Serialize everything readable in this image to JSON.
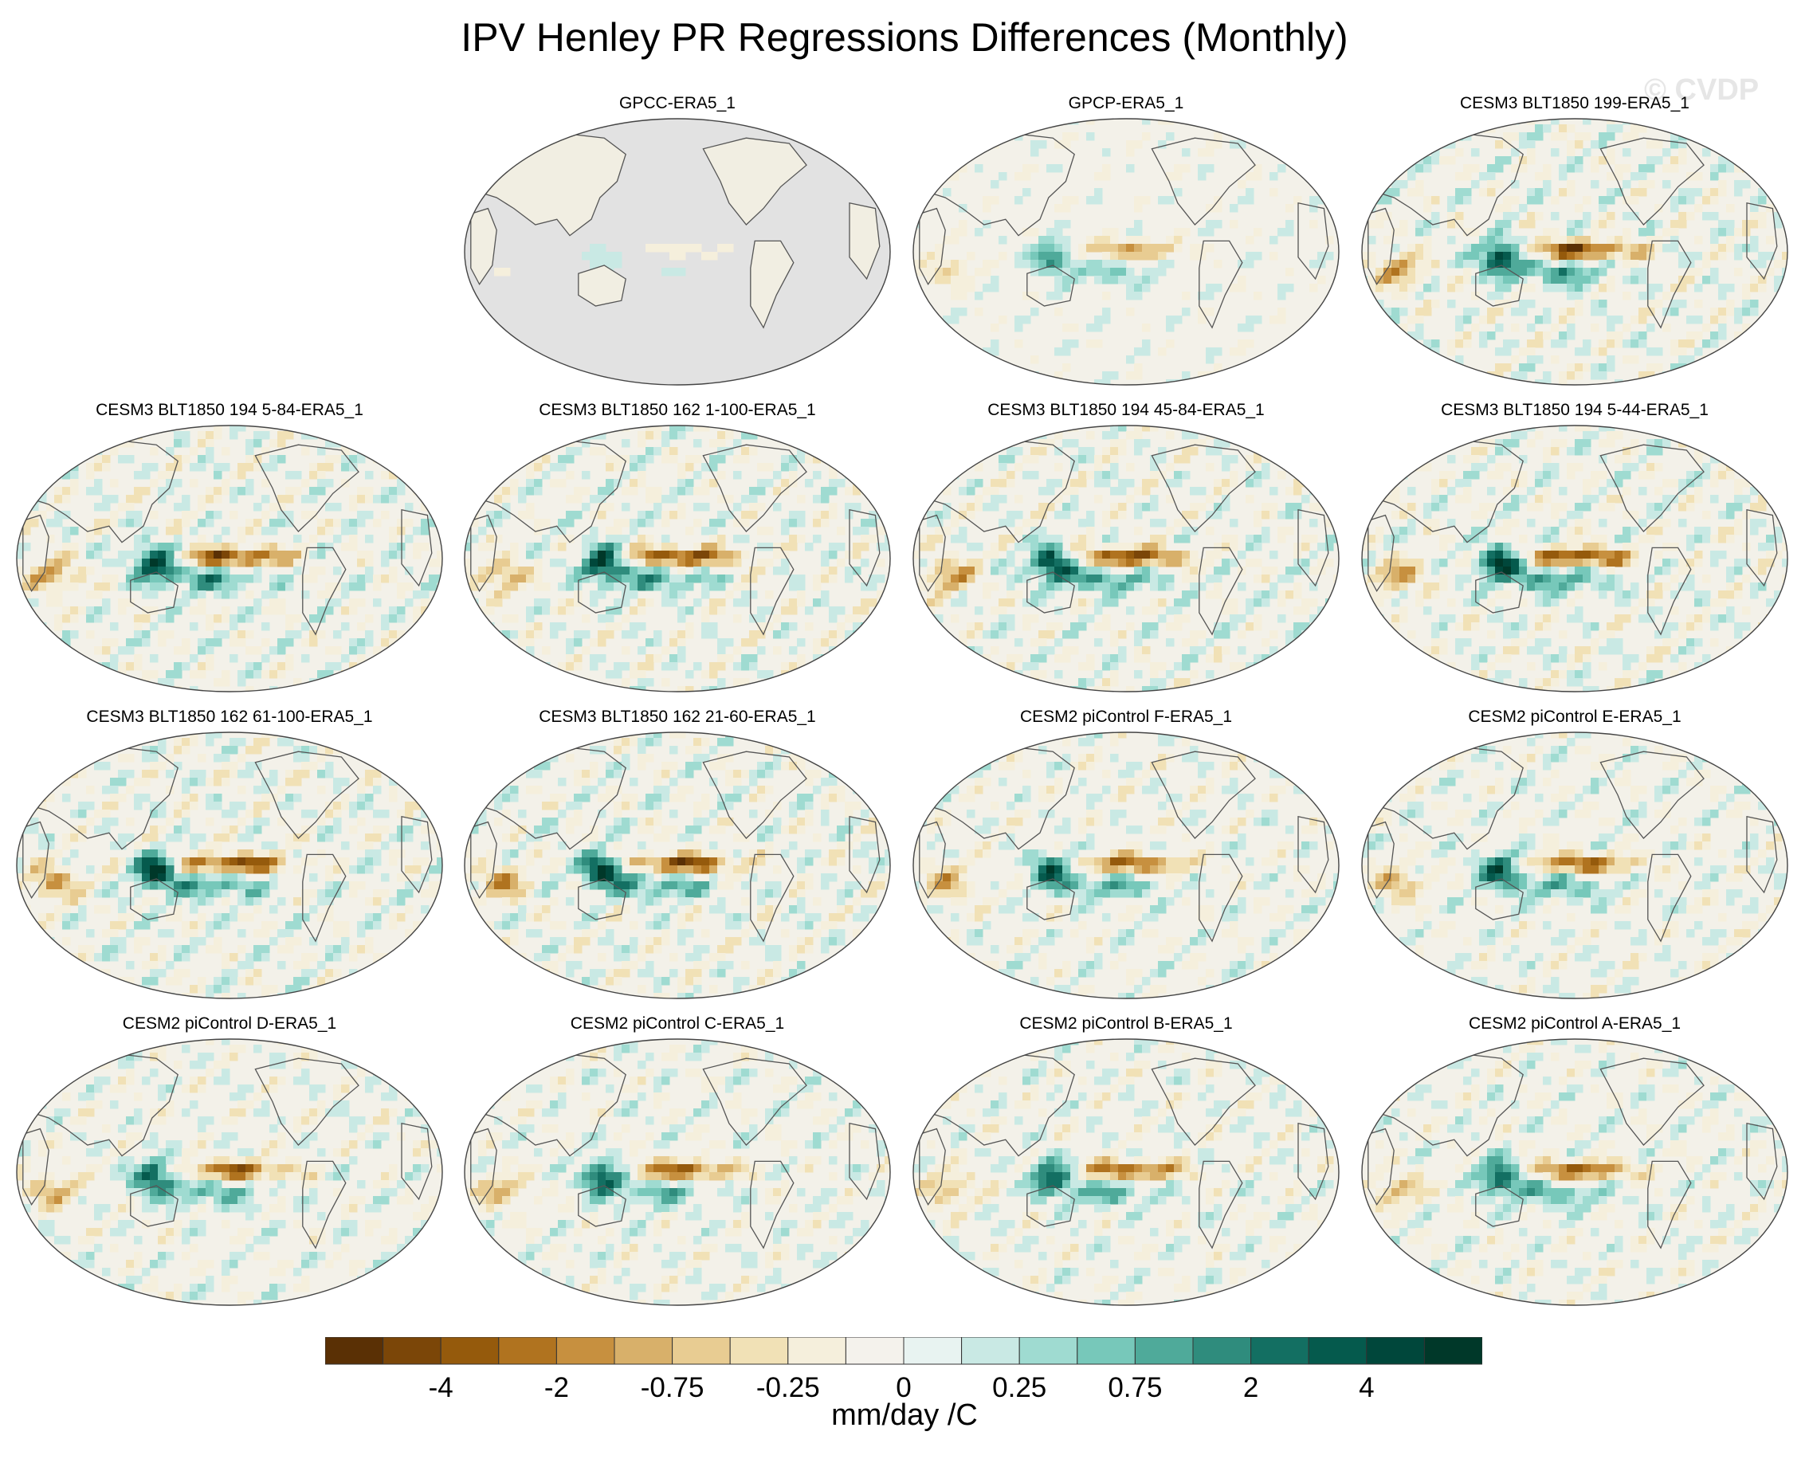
{
  "title": "IPV Henley PR Regressions Differences (Monthly)",
  "watermark": "© CVDP",
  "panels": [
    {
      "label": "GPCC-ERA5_1",
      "ocean_missing": true,
      "amp": 0.4
    },
    {
      "label": "GPCP-ERA5_1",
      "ocean_missing": false,
      "amp": 0.6
    },
    {
      "label": "CESM3 BLT1850 199-ERA5_1",
      "ocean_missing": false,
      "amp": 1.0
    },
    {
      "label": "CESM3 BLT1850 194 5-84-ERA5_1",
      "ocean_missing": false,
      "amp": 1.0
    },
    {
      "label": "CESM3 BLT1850 162 1-100-ERA5_1",
      "ocean_missing": false,
      "amp": 1.0
    },
    {
      "label": "CESM3 BLT1850 194 45-84-ERA5_1",
      "ocean_missing": false,
      "amp": 1.0
    },
    {
      "label": "CESM3 BLT1850 194 5-44-ERA5_1",
      "ocean_missing": false,
      "amp": 1.0
    },
    {
      "label": "CESM3 BLT1850 162 61-100-ERA5_1",
      "ocean_missing": false,
      "amp": 1.0
    },
    {
      "label": "CESM3 BLT1850 162 21-60-ERA5_1",
      "ocean_missing": false,
      "amp": 1.0
    },
    {
      "label": "CESM2 piControl F-ERA5_1",
      "ocean_missing": false,
      "amp": 0.85
    },
    {
      "label": "CESM2 piControl E-ERA5_1",
      "ocean_missing": false,
      "amp": 0.85
    },
    {
      "label": "CESM2 piControl D-ERA5_1",
      "ocean_missing": false,
      "amp": 0.85
    },
    {
      "label": "CESM2 piControl C-ERA5_1",
      "ocean_missing": false,
      "amp": 0.85
    },
    {
      "label": "CESM2 piControl B-ERA5_1",
      "ocean_missing": false,
      "amp": 0.85
    },
    {
      "label": "CESM2 piControl A-ERA5_1",
      "ocean_missing": false,
      "amp": 0.85
    }
  ],
  "colorbar": {
    "colors": [
      "#5a3005",
      "#7b4608",
      "#955a0c",
      "#b0731f",
      "#c7903f",
      "#d8b06a",
      "#e8cc92",
      "#f1e1b6",
      "#f5efdc",
      "#f4f2ec",
      "#e8f3f1",
      "#c9e9e4",
      "#9fdbd1",
      "#77c8ba",
      "#4faa9a",
      "#2f8c7d",
      "#136f62",
      "#055a4d",
      "#00473b",
      "#003829"
    ],
    "tick_labels": [
      "-4",
      "-2",
      "-0.75",
      "-0.25",
      "0",
      "0.25",
      "0.75",
      "2",
      "4"
    ],
    "units": "mm/day /C"
  },
  "map_style": {
    "ocean_missing_color": "#e2e2e2",
    "coast_color": "#555555",
    "base_color": "#f3f1e9"
  }
}
